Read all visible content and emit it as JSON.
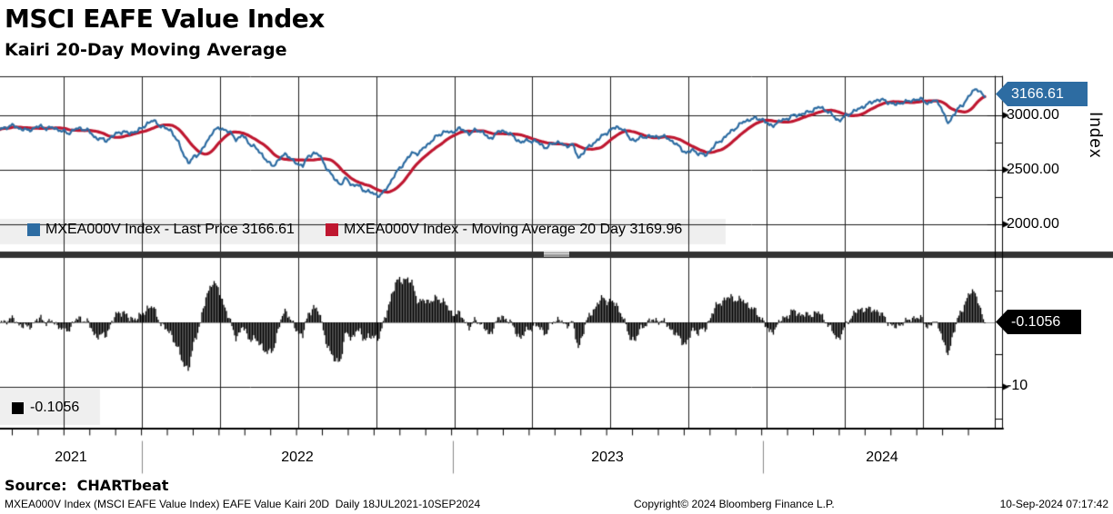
{
  "header": {
    "title": "MSCI EAFE Value Index",
    "subtitle": "Kairi 20-Day Moving Average"
  },
  "top_legend": {
    "items": [
      {
        "label": "MXEA000V Index - Last Price 3166.61",
        "color": "#2d6ca2"
      },
      {
        "label": "MXEA000V Index - Moving Average 20 Day 3169.96",
        "color": "#bf1730"
      }
    ]
  },
  "bottom_legend": {
    "label": "-0.1056",
    "color": "#000000"
  },
  "price_axis": {
    "title": "Index",
    "labels": [
      "3000.00",
      "2500.00",
      "2000.00"
    ],
    "tag": "3166.61",
    "tag_color": "#2d6ca2"
  },
  "kairi_axis": {
    "labels": [
      "-10"
    ],
    "tag": "-0.1056",
    "tag_color": "#000000"
  },
  "x_axis": {
    "years": [
      "2021",
      "2022",
      "2023",
      "2024"
    ]
  },
  "footer": {
    "source": "Source:  CHARTbeat",
    "description": "MXEA000V Index (MSCI EAFE Value Index) EAFE Value Kairi 20D  Daily 18JUL2021-10SEP2024",
    "copyright": "Copyright© 2024 Bloomberg Finance L.P.",
    "timestamp": "10-Sep-2024 07:17:42"
  },
  "chart_data": {
    "type": "line+histogram",
    "title": "MSCI EAFE Value Index — Kairi 20-Day Moving Average",
    "x_range": "18JUL2021-10SEP2024",
    "x_years": [
      "2021",
      "2022",
      "2023",
      "2024"
    ],
    "panels": [
      {
        "type": "line",
        "ylabel": "Index",
        "yticks": [
          3000,
          2500,
          2000
        ],
        "ylim": [
          1760,
          3360
        ],
        "series": [
          {
            "name": "MXEA000V Index - Last Price",
            "color": "#2d6ca2",
            "last": 3166.61
          },
          {
            "name": "MXEA000V Index - Moving Average 20 Day",
            "color": "#bf1730",
            "last": 3169.96,
            "derivation": "sma20(price)"
          }
        ]
      },
      {
        "type": "histogram",
        "name": "Kairi 20-Day",
        "color": "#000000",
        "last": -0.1056,
        "yticks": [
          10,
          0,
          -10
        ],
        "ylim": [
          -17,
          10
        ],
        "derivation": "kairi = (price - sma20) / sma20 * 100"
      }
    ],
    "price_anchors": {
      "x": [
        0,
        8,
        15,
        22,
        30,
        38,
        45,
        52,
        60,
        68,
        75,
        82,
        90,
        97,
        104,
        110,
        116,
        122,
        128,
        135,
        142,
        149,
        156,
        162,
        168,
        175,
        182,
        189,
        196,
        202,
        208,
        214,
        220,
        227,
        234,
        241,
        248,
        254,
        260,
        267,
        274,
        281,
        288,
        295,
        301,
        308,
        315,
        321,
        327,
        333,
        339,
        345,
        351,
        357,
        363,
        369,
        375,
        381,
        387,
        393,
        399,
        405,
        411,
        417,
        422,
        428,
        434,
        440,
        447,
        454,
        461,
        468,
        475,
        482,
        489,
        496,
        503,
        510,
        517,
        524,
        531,
        538,
        545,
        552,
        559,
        566,
        573,
        580,
        587,
        594,
        601,
        608,
        615,
        622,
        629,
        636,
        643,
        650,
        657,
        664,
        671,
        678,
        685,
        692,
        699,
        706,
        713,
        720,
        727,
        734,
        741,
        748,
        755,
        762,
        769,
        776,
        783,
        790,
        797,
        804,
        811,
        818,
        825,
        832,
        839,
        846,
        853,
        860,
        867,
        874,
        881,
        888,
        895,
        902,
        909,
        916,
        923,
        930,
        937,
        944,
        951,
        958,
        965,
        972,
        979,
        986,
        993,
        1000,
        1007,
        1014,
        1021,
        1028,
        1034,
        1039,
        1043,
        1048,
        1053,
        1058,
        1063,
        1068,
        1073,
        1078,
        1081,
        1083
      ],
      "v": [
        2870,
        2895,
        2905,
        2880,
        2860,
        2885,
        2900,
        2880,
        2885,
        2855,
        2835,
        2870,
        2880,
        2860,
        2800,
        2785,
        2765,
        2800,
        2830,
        2855,
        2830,
        2855,
        2875,
        2930,
        2950,
        2915,
        2880,
        2855,
        2750,
        2640,
        2560,
        2625,
        2655,
        2745,
        2855,
        2880,
        2870,
        2830,
        2780,
        2815,
        2745,
        2700,
        2645,
        2560,
        2540,
        2605,
        2650,
        2590,
        2550,
        2545,
        2615,
        2660,
        2635,
        2550,
        2470,
        2405,
        2370,
        2420,
        2360,
        2360,
        2320,
        2300,
        2280,
        2265,
        2290,
        2370,
        2450,
        2520,
        2590,
        2660,
        2650,
        2720,
        2765,
        2820,
        2850,
        2840,
        2875,
        2865,
        2830,
        2870,
        2845,
        2780,
        2830,
        2860,
        2840,
        2795,
        2750,
        2770,
        2765,
        2740,
        2700,
        2745,
        2755,
        2710,
        2745,
        2605,
        2680,
        2725,
        2775,
        2820,
        2865,
        2890,
        2880,
        2790,
        2770,
        2800,
        2810,
        2800,
        2810,
        2790,
        2755,
        2700,
        2655,
        2680,
        2650,
        2630,
        2700,
        2750,
        2800,
        2850,
        2900,
        2940,
        2965,
        2970,
        2965,
        2905,
        2920,
        2955,
        2975,
        3000,
        3010,
        3025,
        3055,
        3075,
        3045,
        2995,
        2950,
        2995,
        3030,
        3055,
        3090,
        3115,
        3145,
        3135,
        3115,
        3095,
        3125,
        3125,
        3150,
        3140,
        3110,
        3135,
        3100,
        2985,
        2920,
        3000,
        3055,
        3085,
        3150,
        3200,
        3240,
        3225,
        3185,
        3166.61
      ]
    }
  }
}
